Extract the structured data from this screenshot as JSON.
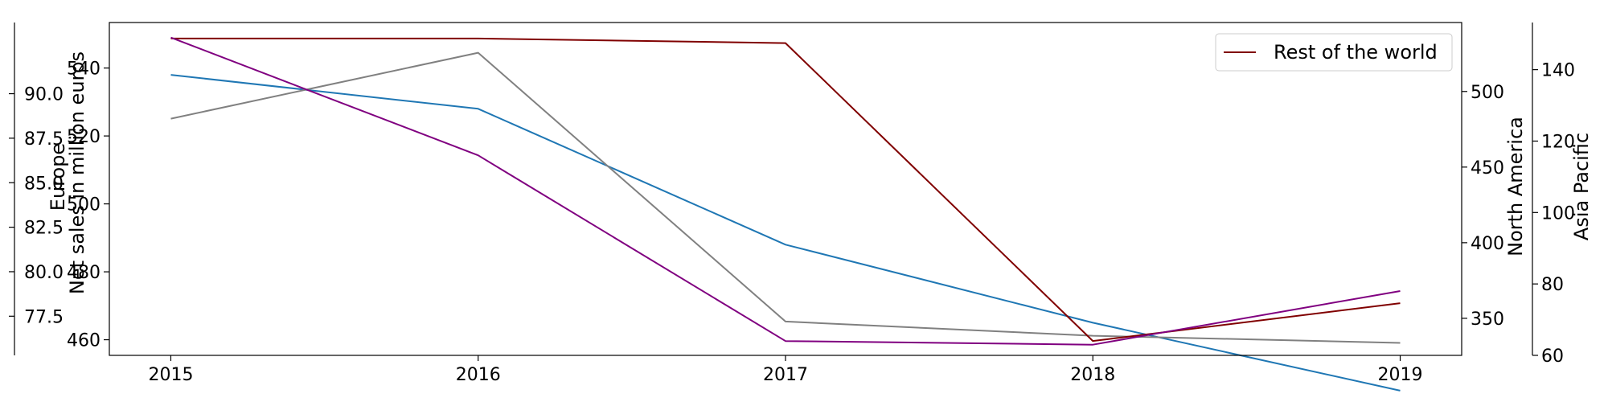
{
  "chart_data": {
    "type": "line",
    "x": [
      2015,
      2016,
      2017,
      2018,
      2019
    ],
    "axes": {
      "x": {
        "ticks": [
          2015,
          2016,
          2017,
          2018,
          2019
        ],
        "tick_labels": [
          "2015",
          "2016",
          "2017",
          "2018",
          "2019"
        ]
      },
      "left_outer": {
        "label": "Europe",
        "range": [
          75.3,
          94.0
        ],
        "ticks": [
          77.5,
          80.0,
          82.5,
          85.0,
          87.5,
          90.0
        ],
        "tick_labels": [
          "77.5",
          "80.0",
          "82.5",
          "85.0",
          "87.5",
          "90.0"
        ]
      },
      "left_inner": {
        "label": "Net sales in million euros",
        "range": [
          455.4,
          553.4
        ],
        "ticks": [
          460,
          480,
          500,
          520,
          540
        ],
        "tick_labels": [
          "460",
          "480",
          "500",
          "520",
          "540"
        ]
      },
      "right_inner": {
        "label": "North America",
        "range": [
          325.5,
          545.6
        ],
        "ticks": [
          350,
          400,
          450,
          500
        ],
        "tick_labels": [
          "350",
          "400",
          "450",
          "500"
        ]
      },
      "right_outer": {
        "label": "Asia Pacific",
        "range": [
          60.0,
          153.2
        ],
        "ticks": [
          60,
          80,
          100,
          120,
          140
        ],
        "tick_labels": [
          "60",
          "80",
          "100",
          "120",
          "140"
        ]
      }
    },
    "series": [
      {
        "name": "",
        "axis": "left_inner",
        "color": "#1f77b4",
        "values": [
          538,
          528,
          488,
          465,
          445
        ]
      },
      {
        "name": "",
        "axis": "left_outer",
        "color": "#808080",
        "values": [
          88.6,
          92.3,
          77.2,
          76.4,
          76.0
        ]
      },
      {
        "name": "Rest of the world",
        "axis": "right_inner",
        "color": "#800000",
        "values": [
          535,
          535,
          532,
          335,
          360
        ]
      },
      {
        "name": "",
        "axis": "right_outer",
        "color": "#800080",
        "values": [
          149,
          116,
          64,
          63,
          78
        ]
      }
    ],
    "legend": {
      "placement": "top-right",
      "entries": [
        "Rest of the world"
      ]
    },
    "grid": false
  }
}
